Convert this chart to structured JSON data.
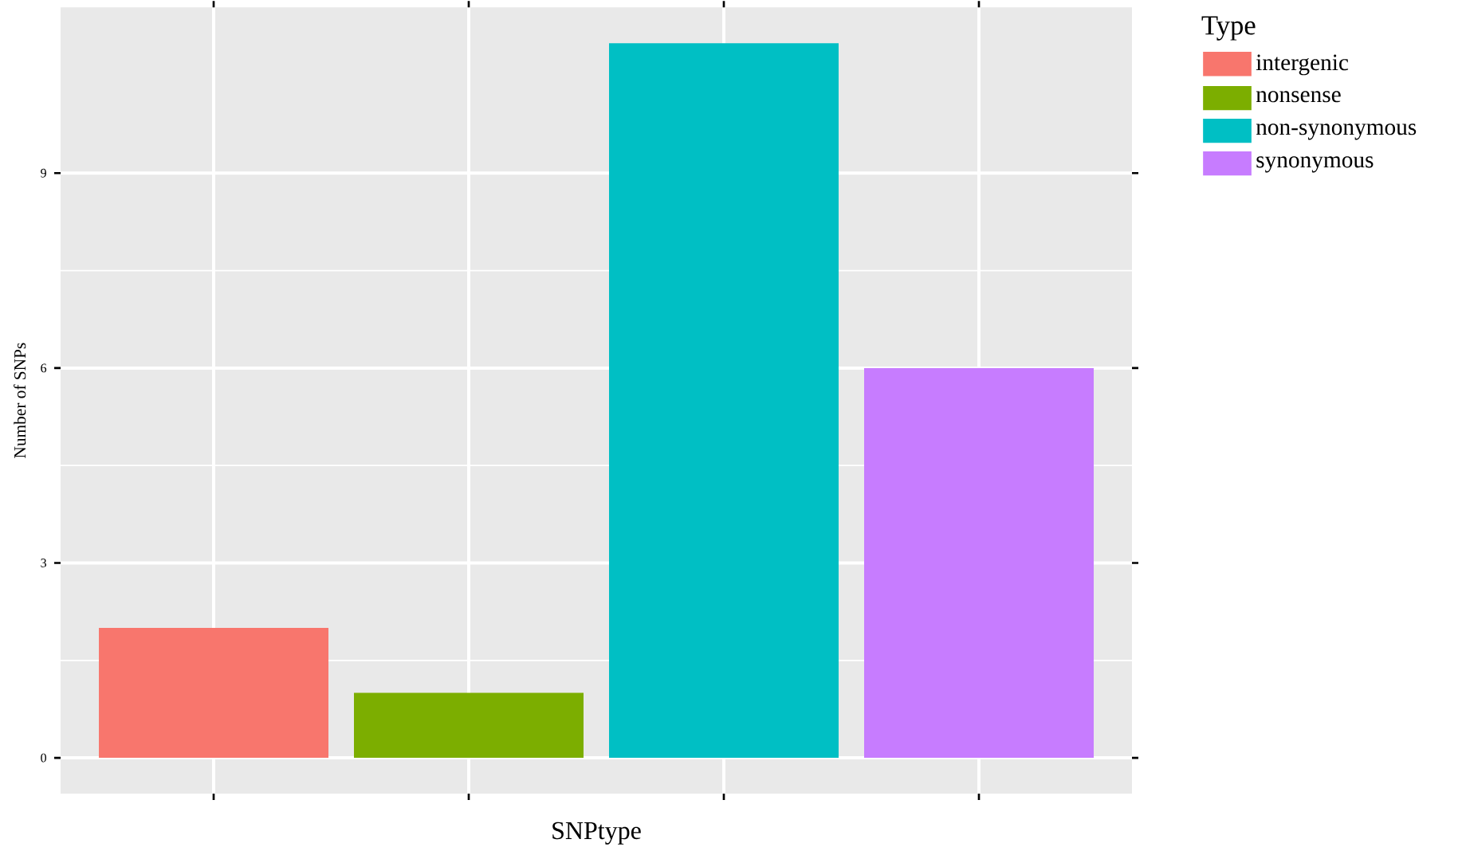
{
  "chart_data": {
    "type": "bar",
    "xlabel": "SNPtype",
    "ylabel": "Number of SNPs",
    "legend_title": "Type",
    "categories": [
      null,
      null,
      null,
      null
    ],
    "series": [
      {
        "name": "intergenic",
        "color": "#f8766d",
        "values": [
          2,
          null,
          null,
          null
        ]
      },
      {
        "name": "nonsense",
        "color": "#7cae00",
        "values": [
          null,
          1,
          null,
          null
        ]
      },
      {
        "name": "non-synonymous",
        "color": "#00bfc4",
        "values": [
          null,
          null,
          11,
          null
        ]
      },
      {
        "name": "synonymous",
        "color": "#c77cff",
        "values": [
          null,
          null,
          null,
          6
        ]
      }
    ],
    "ylim": [
      -0.55,
      11.55
    ],
    "yticks": [
      0,
      3,
      6,
      9
    ],
    "grid": true,
    "legend": "right",
    "tick_labels": "y"
  }
}
